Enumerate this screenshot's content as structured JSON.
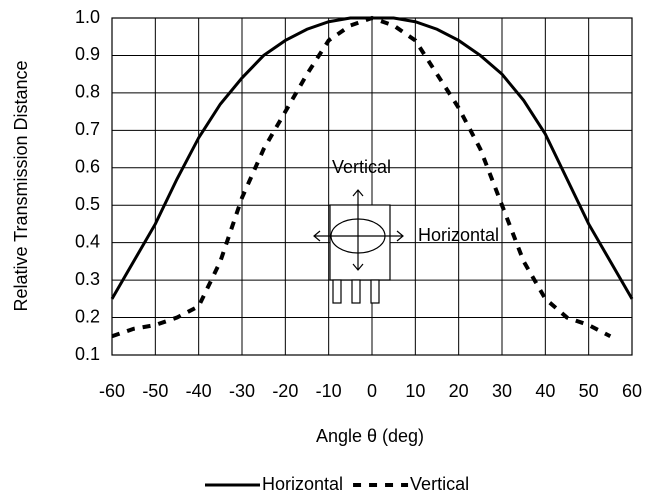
{
  "chart_data": {
    "type": "line",
    "xlabel": "Angle θ (deg)",
    "ylabel": "Relative Transmission Distance",
    "x": [
      -60,
      -55,
      -50,
      -45,
      -40,
      -35,
      -30,
      -25,
      -20,
      -15,
      -10,
      -5,
      0,
      5,
      10,
      15,
      20,
      25,
      30,
      35,
      40,
      45,
      50,
      55,
      60
    ],
    "series": [
      {
        "name": "Horizontal",
        "color": "#000000",
        "style": "solid",
        "values": [
          0.25,
          0.35,
          0.45,
          0.57,
          0.68,
          0.77,
          0.84,
          0.9,
          0.94,
          0.97,
          0.99,
          1.0,
          1.0,
          1.0,
          0.99,
          0.97,
          0.94,
          0.9,
          0.85,
          0.78,
          0.69,
          0.57,
          0.45,
          0.35,
          0.25
        ]
      },
      {
        "name": "Vertical",
        "color": "#000000",
        "style": "dashed",
        "values": [
          0.15,
          0.17,
          0.18,
          0.2,
          0.23,
          0.35,
          0.52,
          0.65,
          0.75,
          0.85,
          0.94,
          0.98,
          1.0,
          0.98,
          0.94,
          0.85,
          0.76,
          0.65,
          0.5,
          0.35,
          0.25,
          0.2,
          0.18,
          0.15,
          null
        ]
      }
    ],
    "xlim": [
      -60,
      60
    ],
    "xticks": [
      -60,
      -50,
      -40,
      -30,
      -20,
      -10,
      0,
      10,
      20,
      30,
      40,
      50,
      60
    ],
    "ylim": [
      0.1,
      1.0
    ],
    "yticks": [
      {
        "value": 0.1,
        "label": "0.1"
      },
      {
        "value": 0.2,
        "label": "0.2"
      },
      {
        "value": 0.3,
        "label": "0.3"
      },
      {
        "value": 0.4,
        "label": "0.4"
      },
      {
        "value": 0.5,
        "label": "0.5"
      },
      {
        "value": 0.6,
        "label": "0.6"
      },
      {
        "value": 0.7,
        "label": "0.7"
      },
      {
        "value": 0.8,
        "label": "0.8"
      },
      {
        "value": 0.9,
        "label": "0.9"
      },
      {
        "value": 1.0,
        "label": "1.0"
      }
    ],
    "grid": true,
    "legend": "bottom",
    "annotations": [
      "Vertical",
      "Horizontal"
    ]
  }
}
